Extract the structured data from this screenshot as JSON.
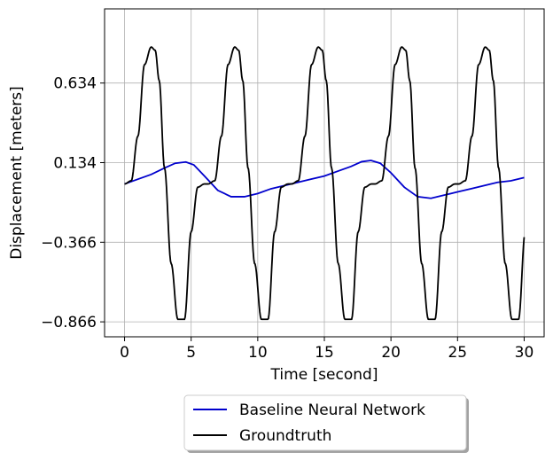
{
  "chart_data": {
    "type": "line",
    "xlabel": "Time [second]",
    "ylabel": "Displacement [meters]",
    "xlim": [
      -1.5,
      31.5
    ],
    "ylim": [
      -0.96,
      1.1
    ],
    "x_ticks": [
      0,
      5,
      10,
      15,
      20,
      25,
      30
    ],
    "x_tick_labels": [
      "0",
      "5",
      "10",
      "15",
      "20",
      "25",
      "30"
    ],
    "y_ticks": [
      -0.866,
      -0.366,
      0.134,
      0.634
    ],
    "y_tick_labels": [
      "−0.866",
      "−0.366",
      "0.134",
      "0.634"
    ],
    "grid": true,
    "legend_position": "below-center",
    "series": [
      {
        "name": "Baseline Neural Network",
        "color": "#0000cd",
        "x": [
          0,
          1,
          2,
          3,
          3.8,
          4.6,
          5.2,
          6,
          7,
          8,
          9,
          10,
          11,
          12,
          13,
          14,
          15,
          16,
          17,
          17.8,
          18.5,
          19.2,
          20,
          21,
          22,
          23,
          24,
          25,
          26,
          27,
          28,
          29,
          30
        ],
        "y": [
          0.0,
          0.03,
          0.06,
          0.1,
          0.13,
          0.138,
          0.12,
          0.05,
          -0.04,
          -0.08,
          -0.08,
          -0.06,
          -0.03,
          -0.01,
          0.01,
          0.03,
          0.05,
          0.08,
          0.11,
          0.14,
          0.148,
          0.13,
          0.07,
          -0.02,
          -0.08,
          -0.09,
          -0.07,
          -0.05,
          -0.03,
          -0.01,
          0.01,
          0.02,
          0.04
        ]
      },
      {
        "name": "Groundtruth",
        "color": "#000000",
        "amplitude_max": 0.87,
        "amplitude_min": -0.866,
        "period": 6.27,
        "x": [
          0,
          0.5,
          1,
          1.5,
          2,
          2.3,
          2.6,
          3,
          3.5,
          4,
          4.5,
          5,
          5.5,
          6,
          6.27
        ],
        "y": [
          0.0,
          0.02,
          0.3,
          0.75,
          0.86,
          0.84,
          0.65,
          0.1,
          -0.5,
          -0.85,
          -0.85,
          -0.3,
          -0.02,
          0.0,
          0.0
        ]
      }
    ]
  }
}
